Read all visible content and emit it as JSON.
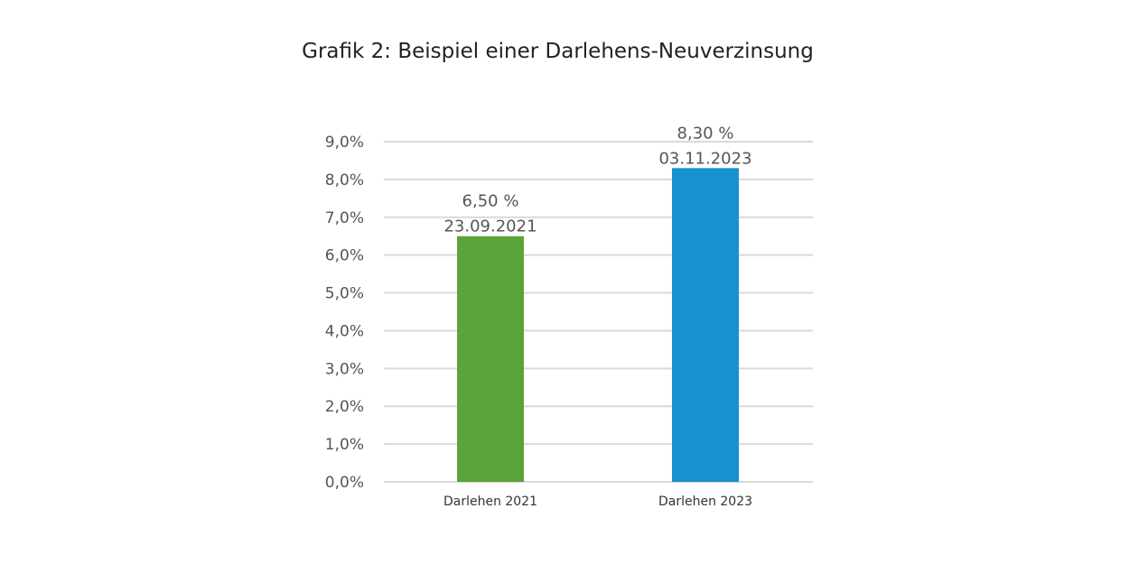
{
  "chart_data": {
    "type": "bar",
    "title": "Grafik 2: Beispiel einer Darlehens-Neuverzinsung",
    "xlabel": "",
    "ylabel": "",
    "categories": [
      "Darlehen 2021",
      "Darlehen 2023"
    ],
    "values": [
      6.5,
      8.3
    ],
    "value_labels": [
      "6,50 %",
      "8,30 %"
    ],
    "date_labels": [
      "23.09.2021",
      "03.11.2023"
    ],
    "colors": [
      "#5ba33b",
      "#1592cf"
    ],
    "ylim": [
      0,
      9
    ],
    "ytick_values": [
      0,
      1,
      2,
      3,
      4,
      5,
      6,
      7,
      8,
      9
    ],
    "ytick_labels": [
      "0,0%",
      "1,0%",
      "2,0%",
      "3,0%",
      "4,0%",
      "5,0%",
      "6,0%",
      "7,0%",
      "8,0%",
      "9,0%"
    ],
    "grid": true,
    "legend": "none"
  }
}
